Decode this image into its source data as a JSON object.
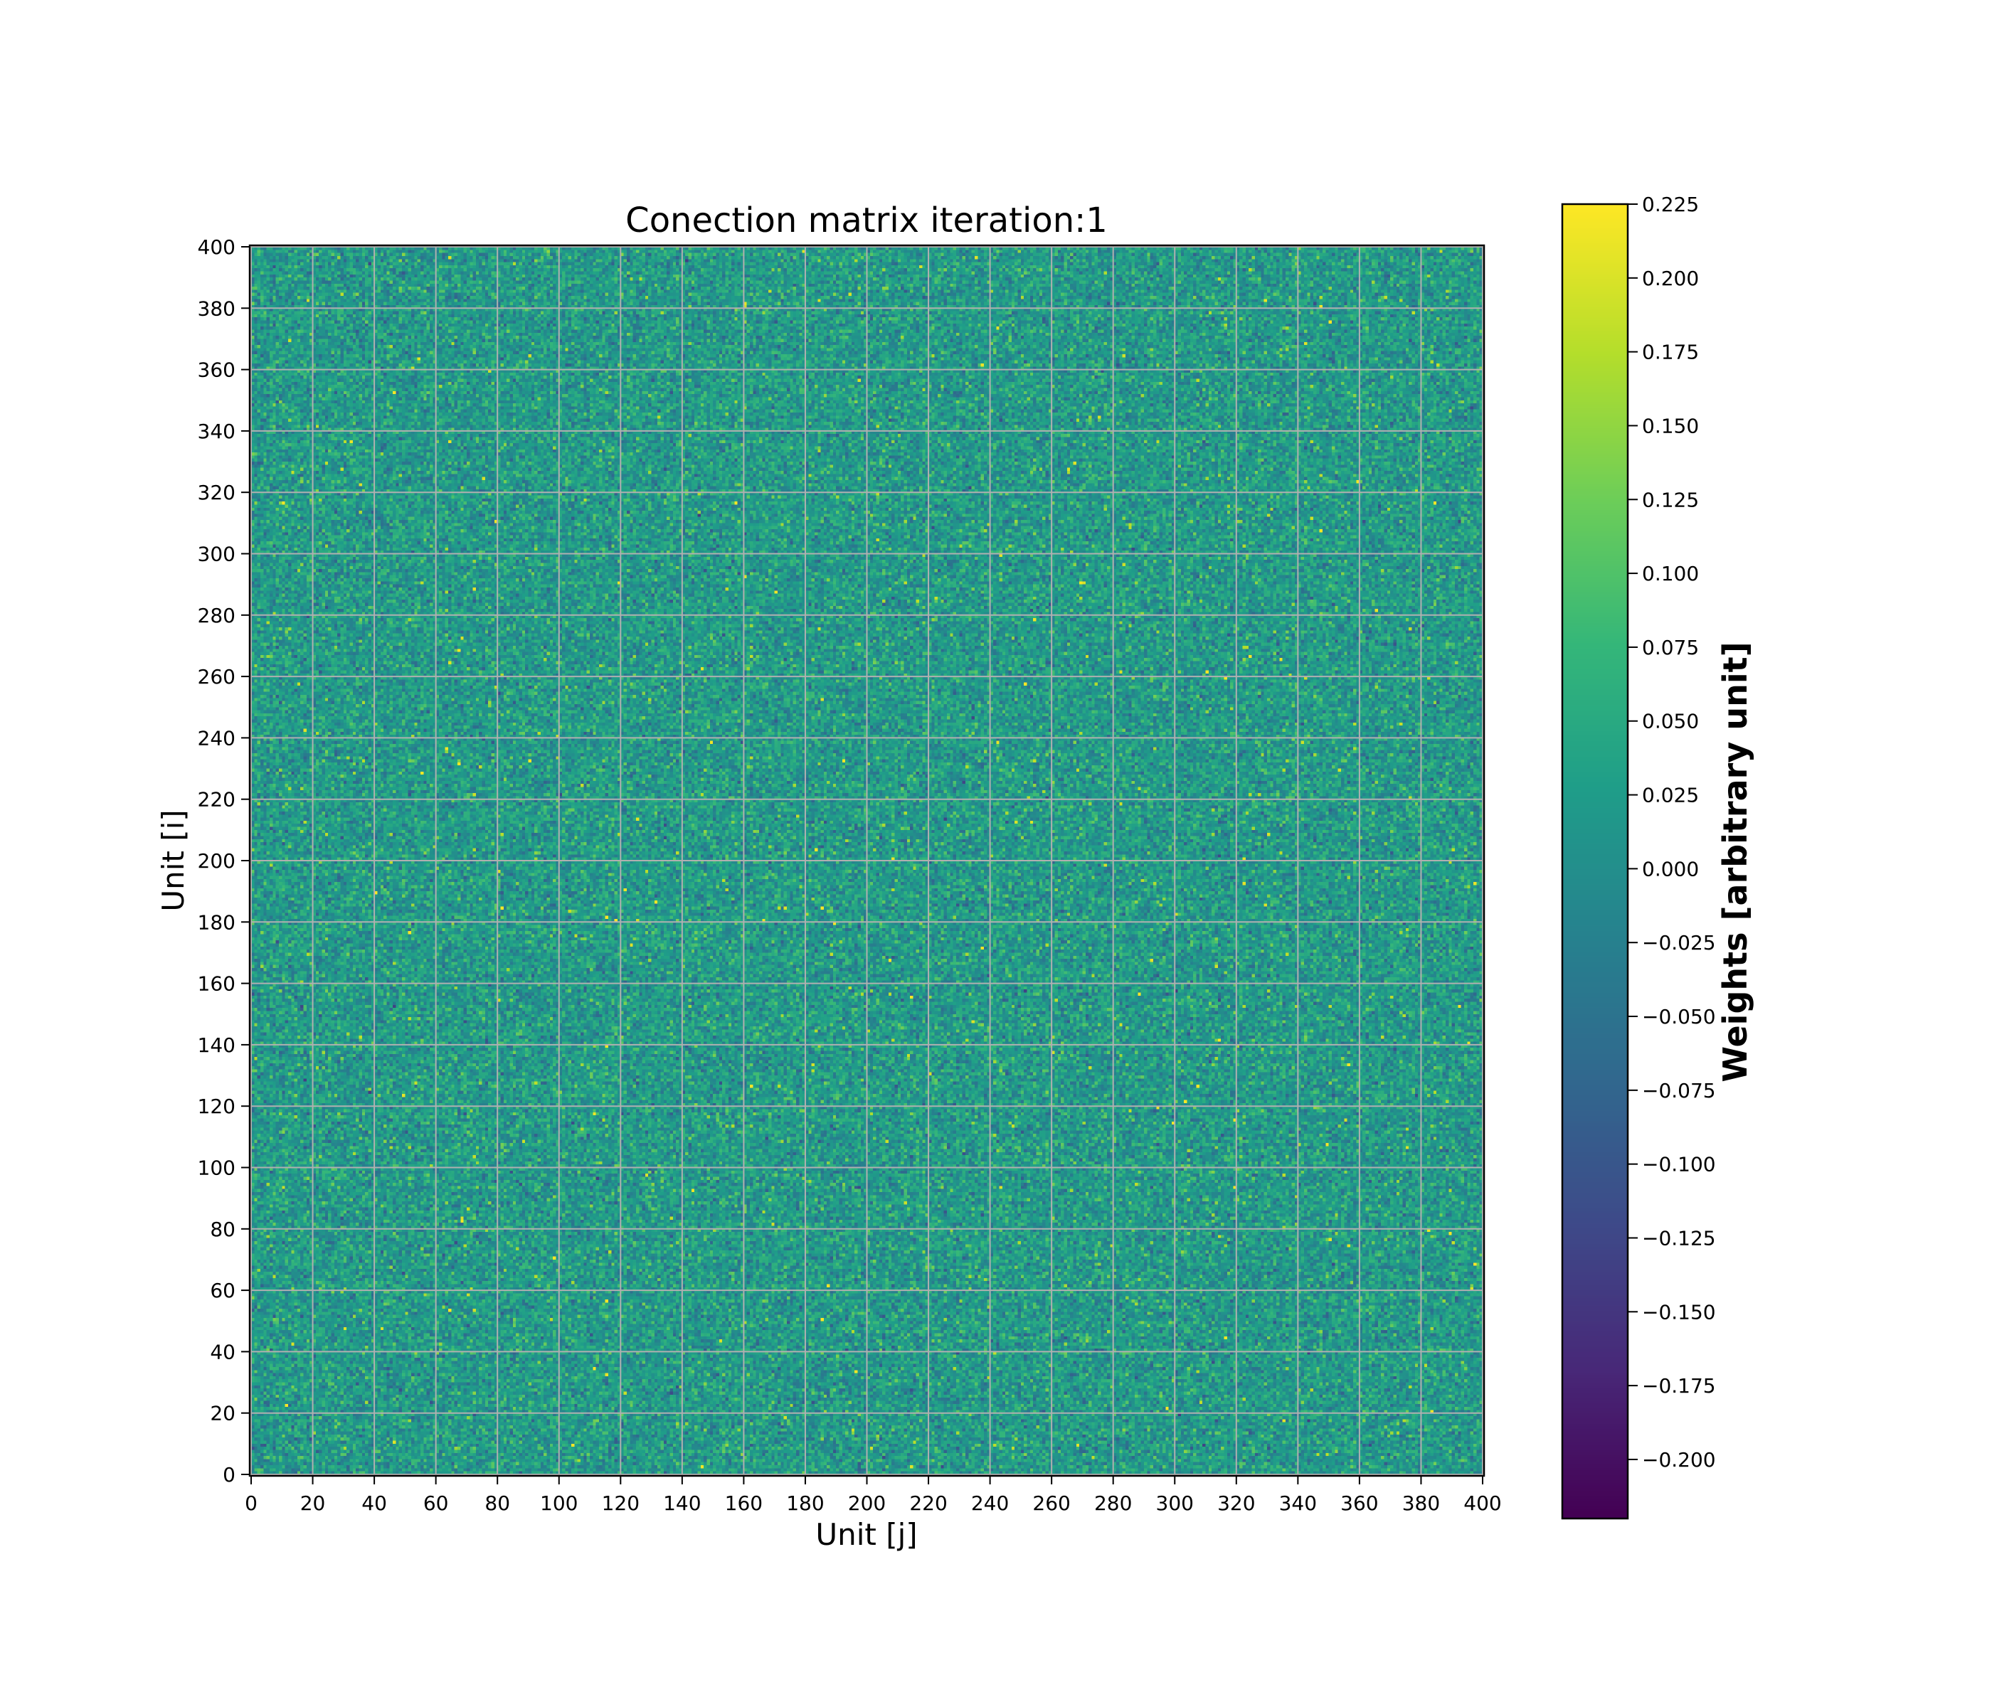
{
  "chart_data": {
    "type": "heatmap",
    "title": "Conection matrix iteration:1",
    "xlabel": "Unit [j]",
    "ylabel": "Unit [i]",
    "xlim": [
      0,
      400
    ],
    "ylim": [
      0,
      400
    ],
    "grid": true,
    "colormap": "viridis",
    "cells_per_axis": 400,
    "block_size": 20,
    "x_ticks": [
      "0",
      "20",
      "40",
      "60",
      "80",
      "100",
      "120",
      "140",
      "160",
      "180",
      "200",
      "220",
      "240",
      "260",
      "280",
      "300",
      "320",
      "340",
      "360",
      "380",
      "400"
    ],
    "y_ticks": [
      "0",
      "20",
      "40",
      "60",
      "80",
      "100",
      "120",
      "140",
      "160",
      "180",
      "200",
      "220",
      "240",
      "260",
      "280",
      "300",
      "320",
      "340",
      "360",
      "380",
      "400"
    ],
    "x_tick_values": [
      0,
      20,
      40,
      60,
      80,
      100,
      120,
      140,
      160,
      180,
      200,
      220,
      240,
      260,
      280,
      300,
      320,
      340,
      360,
      380,
      400
    ],
    "y_tick_values": [
      0,
      20,
      40,
      60,
      80,
      100,
      120,
      140,
      160,
      180,
      200,
      220,
      240,
      260,
      280,
      300,
      320,
      340,
      360,
      380,
      400
    ],
    "value_distribution": {
      "mean": 0.02,
      "std": 0.04,
      "min": -0.22,
      "max": 0.225
    },
    "colorbar": {
      "label": "Weights [arbitrary unit]",
      "range": [
        -0.22,
        0.225
      ],
      "ticks": [
        "0.225",
        "0.200",
        "0.175",
        "0.150",
        "0.125",
        "0.100",
        "0.075",
        "0.050",
        "0.025",
        "0.000",
        "−0.025",
        "−0.050",
        "−0.075",
        "−0.100",
        "−0.125",
        "−0.150",
        "−0.175",
        "−0.200"
      ],
      "tick_values": [
        0.225,
        0.2,
        0.175,
        0.15,
        0.125,
        0.1,
        0.075,
        0.05,
        0.025,
        0.0,
        -0.025,
        -0.05,
        -0.075,
        -0.1,
        -0.125,
        -0.15,
        -0.175,
        -0.2
      ]
    }
  },
  "colors": {
    "grid": "#b0b0b0",
    "axis": "#000000",
    "background": "#ffffff",
    "viridis_stops": [
      "#440154",
      "#482878",
      "#3e4a89",
      "#31688e",
      "#26828e",
      "#1f9e89",
      "#35b779",
      "#6ece58",
      "#b5de2b",
      "#fde725"
    ]
  }
}
